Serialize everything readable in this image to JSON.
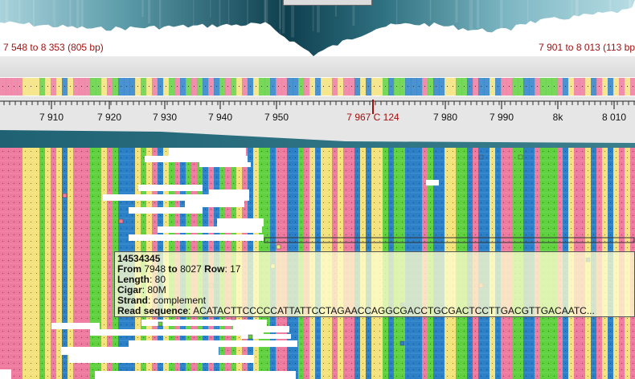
{
  "overview": {
    "range_left": "7 548 to 8 353 (805 bp)",
    "range_right": "7 901 to 8 013 (113 bp"
  },
  "ruler": {
    "ticks": [
      "7 910",
      "7 920",
      "7 930",
      "7 940",
      "7 950",
      "7 980",
      "7 990",
      "8k",
      "8 010"
    ],
    "cursor_label": "7 967 C 124"
  },
  "tooltip": {
    "read_id": "14534345",
    "from_label": "From",
    "from": "7948",
    "to_label": "to",
    "to": "8027",
    "row_label": "Row",
    "row": "17",
    "length_label": "Length",
    "length": "80",
    "cigar_label": "Cigar",
    "cigar": "80M",
    "strand_label": "Strand",
    "strand": "complement",
    "sequence_label": "Read sequence",
    "sequence": "ACATACTTCCCCCATTATTCCTAGAACCAGGCGACCTGCGACTCCTTGACGTTGACAATC..."
  },
  "colors": {
    "A": "#5fd13f",
    "C": "#2b80c8",
    "G": "#f4e27c",
    "T": "#ef7aa0",
    "coverage": "#0e4a5a",
    "cursor": "#a01010"
  },
  "icons": {
    "overview_handle": "range-handle"
  }
}
